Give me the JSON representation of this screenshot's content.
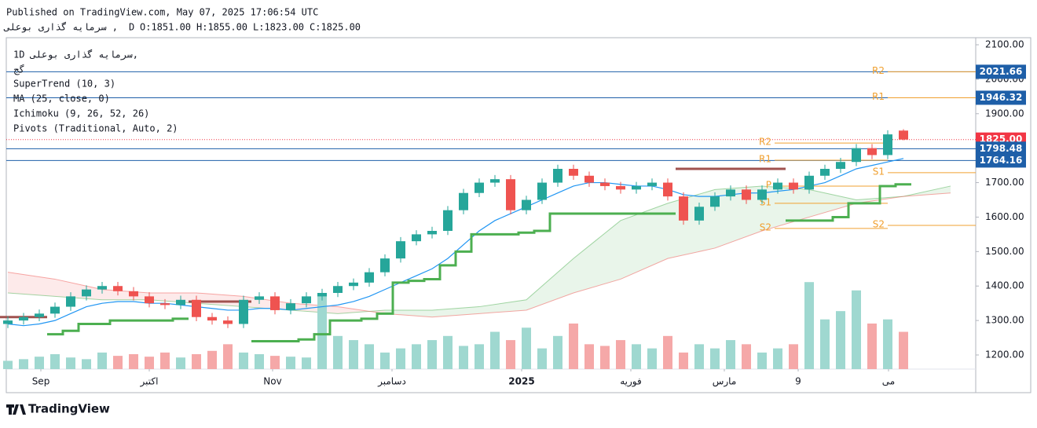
{
  "header": {
    "published": "Published on TradingView.com, May 07, 2025 17:06:54 UTC",
    "symbol": "سرمایه گذاری بوعلی ,",
    "interval": "D",
    "ohlc": [
      "O:1851.00",
      "H:1855.00",
      "L:1823.00",
      "C:1825.00"
    ]
  },
  "legend": {
    "symbol": "1D  سرمایه گذاری بوعلی,",
    "exchange": "گج",
    "indicators": [
      "SuperTrend (10, 3)",
      "MA (25, close, 0)",
      "Ichimoku (9, 26, 52, 26)",
      "Pivots (Traditional, Auto, 2)"
    ]
  },
  "chart_data": {
    "type": "candlestick",
    "xlim": [
      -0.1,
      61.6
    ],
    "ylim": [
      1159,
      2120.5
    ],
    "xticks": [
      {
        "value": 2.1,
        "label": "Sep"
      },
      {
        "value": 9,
        "label": "اکتبر"
      },
      {
        "value": 16.85,
        "label": "Nov"
      },
      {
        "value": 24.45,
        "label": "دسامبر"
      },
      {
        "value": 32.7,
        "label": "2025"
      },
      {
        "value": 39.65,
        "label": "فوریه"
      },
      {
        "value": 45.6,
        "label": "مارس"
      },
      {
        "value": 50.3,
        "label": "9"
      },
      {
        "value": 56.05,
        "label": "مى"
      }
    ],
    "yticks": [
      {
        "value": 1200,
        "label": "1200.00"
      },
      {
        "value": 1300,
        "label": "1300.00"
      },
      {
        "value": 1400,
        "label": "1400.00"
      },
      {
        "value": 1500,
        "label": "1500.00"
      },
      {
        "value": 1600,
        "label": "1600.00"
      },
      {
        "value": 1700,
        "label": "1700.00"
      },
      {
        "value": 1800,
        "label": "1800.00"
      },
      {
        "value": 1900,
        "label": "1900.00"
      },
      {
        "value": 2000,
        "label": "2000.00"
      },
      {
        "value": 2100,
        "label": "2100.00"
      }
    ],
    "up_color": "#26a69a",
    "down_color": "#ef5350",
    "candles": [
      [
        1290,
        1312,
        1278,
        1300
      ],
      [
        1300,
        1322,
        1288,
        1310
      ],
      [
        1310,
        1332,
        1298,
        1320
      ],
      [
        1320,
        1352,
        1308,
        1340
      ],
      [
        1340,
        1382,
        1328,
        1370
      ],
      [
        1370,
        1402,
        1358,
        1390
      ],
      [
        1390,
        1412,
        1378,
        1400
      ],
      [
        1400,
        1412,
        1373,
        1385
      ],
      [
        1385,
        1397,
        1358,
        1370
      ],
      [
        1370,
        1382,
        1338,
        1350
      ],
      [
        1350,
        1362,
        1333,
        1345
      ],
      [
        1345,
        1372,
        1333,
        1360
      ],
      [
        1360,
        1372,
        1298,
        1310
      ],
      [
        1310,
        1322,
        1288,
        1300
      ],
      [
        1300,
        1312,
        1278,
        1290
      ],
      [
        1290,
        1372,
        1278,
        1360
      ],
      [
        1360,
        1382,
        1348,
        1370
      ],
      [
        1370,
        1382,
        1318,
        1330
      ],
      [
        1330,
        1362,
        1318,
        1350
      ],
      [
        1350,
        1382,
        1338,
        1370
      ],
      [
        1370,
        1392,
        1358,
        1380
      ],
      [
        1380,
        1412,
        1368,
        1400
      ],
      [
        1400,
        1422,
        1388,
        1410
      ],
      [
        1410,
        1452,
        1398,
        1440
      ],
      [
        1440,
        1492,
        1428,
        1480
      ],
      [
        1480,
        1542,
        1468,
        1530
      ],
      [
        1530,
        1562,
        1518,
        1550
      ],
      [
        1550,
        1572,
        1538,
        1560
      ],
      [
        1560,
        1632,
        1548,
        1620
      ],
      [
        1620,
        1682,
        1608,
        1670
      ],
      [
        1670,
        1712,
        1658,
        1700
      ],
      [
        1700,
        1722,
        1688,
        1710
      ],
      [
        1710,
        1722,
        1608,
        1620
      ],
      [
        1620,
        1662,
        1608,
        1650
      ],
      [
        1650,
        1712,
        1638,
        1700
      ],
      [
        1700,
        1752,
        1688,
        1740
      ],
      [
        1740,
        1752,
        1708,
        1720
      ],
      [
        1720,
        1732,
        1688,
        1700
      ],
      [
        1700,
        1712,
        1678,
        1690
      ],
      [
        1690,
        1702,
        1668,
        1680
      ],
      [
        1680,
        1702,
        1668,
        1690
      ],
      [
        1690,
        1712,
        1678,
        1700
      ],
      [
        1700,
        1712,
        1648,
        1660
      ],
      [
        1660,
        1672,
        1578,
        1590
      ],
      [
        1590,
        1642,
        1578,
        1630
      ],
      [
        1630,
        1672,
        1618,
        1660
      ],
      [
        1660,
        1692,
        1648,
        1680
      ],
      [
        1680,
        1692,
        1638,
        1650
      ],
      [
        1650,
        1692,
        1638,
        1680
      ],
      [
        1680,
        1712,
        1668,
        1700
      ],
      [
        1700,
        1712,
        1668,
        1680
      ],
      [
        1680,
        1732,
        1668,
        1720
      ],
      [
        1720,
        1752,
        1708,
        1740
      ],
      [
        1740,
        1772,
        1728,
        1760
      ],
      [
        1760,
        1812,
        1748,
        1800
      ],
      [
        1800,
        1812,
        1768,
        1780
      ],
      [
        1780,
        1852,
        1768,
        1840
      ],
      [
        1851,
        1855,
        1823,
        1825
      ]
    ],
    "volume": {
      "vlim": [
        0,
        400
      ],
      "up_color": "#9fd8d0",
      "down_color": "#f5a8a8",
      "values": [
        10,
        12,
        15,
        18,
        14,
        12,
        20,
        16,
        18,
        15,
        20,
        14,
        18,
        22,
        30,
        20,
        18,
        16,
        15,
        14,
        90,
        40,
        35,
        30,
        20,
        25,
        30,
        35,
        40,
        28,
        30,
        45,
        35,
        50,
        25,
        40,
        55,
        30,
        28,
        35,
        30,
        25,
        40,
        20,
        30,
        25,
        35,
        30,
        20,
        25,
        30,
        105,
        60,
        70,
        95,
        55,
        60,
        45
      ]
    },
    "ma": {
      "color": "#2196f3",
      "values": [
        1290,
        1285,
        1290,
        1300,
        1320,
        1340,
        1350,
        1355,
        1355,
        1350,
        1350,
        1345,
        1340,
        1335,
        1330,
        1330,
        1335,
        1335,
        1330,
        1335,
        1340,
        1345,
        1355,
        1370,
        1390,
        1410,
        1430,
        1450,
        1480,
        1520,
        1560,
        1590,
        1610,
        1630,
        1650,
        1670,
        1690,
        1700,
        1700,
        1695,
        1690,
        1690,
        1680,
        1665,
        1660,
        1660,
        1665,
        1670,
        1670,
        1675,
        1680,
        1690,
        1700,
        1720,
        1740,
        1750,
        1760,
        1770
      ]
    },
    "supertrend": {
      "up_color": "#4caf50",
      "down_color": "#a0524f",
      "up": [
        null,
        null,
        null,
        1260,
        1270,
        1290,
        1290,
        1300,
        1300,
        1300,
        1300,
        1305,
        null,
        null,
        null,
        null,
        1240,
        1240,
        1240,
        1245,
        1260,
        1300,
        1300,
        1305,
        1320,
        1410,
        1415,
        1420,
        1460,
        1500,
        1550,
        1550,
        1550,
        1555,
        1560,
        1610,
        1610,
        1610,
        1610,
        1610,
        1610,
        1610,
        1610,
        null,
        null,
        null,
        null,
        null,
        null,
        null,
        1590,
        1590,
        1590,
        1600,
        1640,
        1640,
        1690,
        1695
      ],
      "down": [
        1310,
        1310,
        1310,
        null,
        null,
        null,
        null,
        null,
        null,
        null,
        null,
        null,
        1355,
        1355,
        1355,
        1355,
        null,
        null,
        null,
        null,
        null,
        null,
        null,
        null,
        null,
        null,
        null,
        null,
        null,
        null,
        null,
        null,
        null,
        null,
        null,
        null,
        null,
        null,
        null,
        null,
        null,
        null,
        null,
        1740,
        1740,
        1740,
        1740,
        1740,
        1740,
        1740,
        null,
        null,
        null,
        null,
        null,
        null,
        null,
        null
      ]
    },
    "cloud": {
      "up_color": "#4caf50",
      "down_color": "#ef5350",
      "x": [
        0,
        3,
        6,
        9,
        12,
        15,
        18,
        21,
        24,
        27,
        30,
        33,
        36,
        39,
        42,
        45,
        48,
        51,
        54,
        57,
        60
      ],
      "span_a": [
        1380,
        1370,
        1360,
        1360,
        1350,
        1340,
        1330,
        1320,
        1330,
        1330,
        1340,
        1360,
        1480,
        1590,
        1640,
        1680,
        1690,
        1680,
        1650,
        1660,
        1690
      ],
      "span_b": [
        1440,
        1420,
        1390,
        1380,
        1380,
        1370,
        1350,
        1340,
        1320,
        1310,
        1320,
        1330,
        1380,
        1420,
        1480,
        1510,
        1560,
        1600,
        1640,
        1660,
        1670
      ]
    },
    "pivots": {
      "color": "#f0a030",
      "sets": [
        {
          "start": 48.8,
          "end": 56,
          "levels": [
            {
              "label": "R2",
              "value": 1815
            },
            {
              "label": "R1",
              "value": 1765
            },
            {
              "label": "P",
              "value": 1690
            },
            {
              "label": "S1",
              "value": 1640
            },
            {
              "label": "S2",
              "value": 1567
            }
          ]
        },
        {
          "start": 56,
          "end": 61.6,
          "levels": [
            {
              "label": "R2",
              "value": 2021.66
            },
            {
              "label": "R1",
              "value": 1946.32
            },
            {
              "label": "S1",
              "value": 1729
            },
            {
              "label": "S2",
              "value": 1576
            }
          ]
        }
      ]
    },
    "price_lines": [
      {
        "value": 2021.66,
        "label": "2021.66",
        "color": "#1e5fa8"
      },
      {
        "value": 1946.32,
        "label": "1946.32",
        "color": "#1e5fa8"
      },
      {
        "value": 1825,
        "label": "1825.00",
        "color": "#f23645"
      },
      {
        "value": 1798.48,
        "label": "1798.48",
        "color": "#1e5fa8"
      },
      {
        "value": 1764.16,
        "label": "1764.16",
        "color": "#1e5fa8"
      }
    ]
  },
  "footer": {
    "brand": "TradingView"
  }
}
